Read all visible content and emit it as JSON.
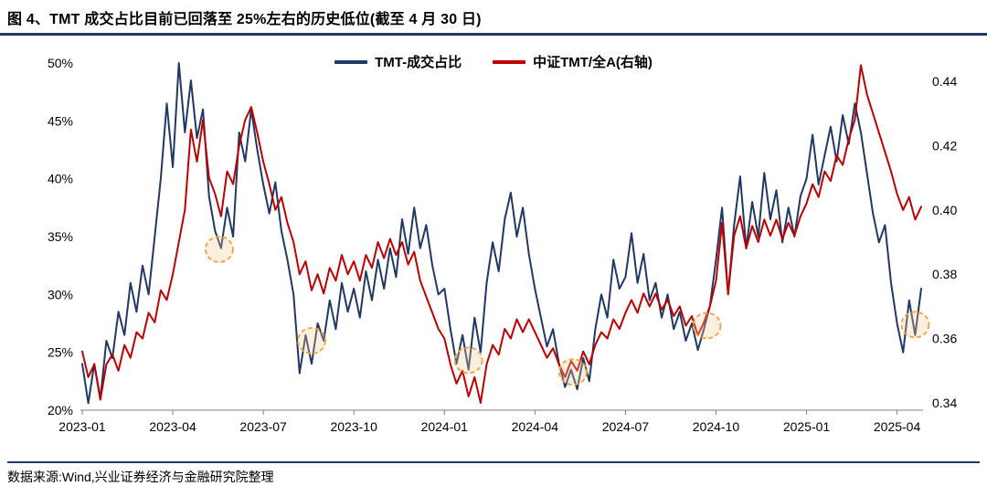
{
  "title": "图 4、TMT 成交占比目前已回落至 25%左右的历史低位(截至 4 月 30 日)",
  "footer": {
    "source": "数据来源:Wind,兴业证券经济与金融研究院整理"
  },
  "colors": {
    "accent_rule": "#1F3864",
    "blue_line": "#1F3864",
    "red_line": "#C00000",
    "axis_text": "#000000",
    "axis_line": "#7f7f7f",
    "highlight_stroke": "#F2A33C",
    "highlight_fill": "rgba(247,202,153,0.30)"
  },
  "legend": [
    {
      "label": "TMT-成交占比",
      "color": "#1F3864"
    },
    {
      "label": "中证TMT/全A(右轴)",
      "color": "#C00000"
    }
  ],
  "chart_data": {
    "type": "line",
    "title": "图 4、TMT 成交占比目前已回落至 25%左右的历史低位(截至 4 月 30 日)",
    "grid": false,
    "legend_position": "top-center",
    "x_axis": {
      "tick_labels": [
        "2023-01",
        "2023-04",
        "2023-07",
        "2023-10",
        "2024-01",
        "2024-04",
        "2024-07",
        "2024-10",
        "2025-01",
        "2025-04"
      ],
      "tick_indices": [
        0,
        15,
        30,
        45,
        60,
        75,
        90,
        105,
        120,
        135
      ],
      "n_points": 140
    },
    "left_axis": {
      "range": [
        20,
        50
      ],
      "tick_values": [
        50,
        45,
        40,
        35,
        30,
        25,
        20
      ],
      "tick_labels": [
        "50%",
        "45%",
        "40%",
        "35%",
        "30%",
        "25%",
        "20%"
      ]
    },
    "right_axis": {
      "range": [
        0.34,
        0.445
      ],
      "tick_values": [
        0.44,
        0.42,
        0.4,
        0.38,
        0.36,
        0.34
      ],
      "tick_labels": [
        "0.44",
        "0.42",
        "0.40",
        "0.38",
        "0.36",
        "0.34"
      ]
    },
    "series": [
      {
        "name": "TMT-成交占比",
        "axis": "left",
        "color": "#1F3864",
        "unit": "%",
        "values": [
          24.0,
          20.6,
          24.0,
          21.0,
          26.0,
          24.5,
          28.5,
          26.5,
          31.0,
          28.5,
          32.5,
          30.0,
          35.0,
          40.0,
          46.5,
          41.0,
          50.0,
          44.0,
          48.5,
          43.5,
          46.0,
          38.5,
          35.5,
          34.0,
          37.5,
          35.0,
          44.0,
          41.5,
          46.0,
          42.5,
          39.5,
          37.0,
          39.7,
          35.5,
          33.0,
          30.0,
          23.2,
          26.5,
          24.0,
          27.5,
          26.0,
          29.5,
          27.0,
          31.0,
          28.5,
          30.5,
          28.0,
          32.0,
          29.5,
          33.0,
          30.5,
          34.0,
          31.5,
          36.5,
          33.5,
          37.5,
          34.0,
          36.0,
          32.5,
          30.0,
          30.5,
          27.0,
          24.0,
          26.5,
          23.5,
          28.0,
          25.0,
          31.0,
          34.5,
          32.0,
          36.5,
          38.8,
          35.0,
          37.5,
          33.5,
          30.5,
          28.0,
          25.5,
          27.0,
          24.0,
          22.0,
          23.5,
          21.8,
          24.5,
          22.5,
          27.0,
          30.0,
          28.0,
          33.0,
          30.5,
          31.5,
          35.3,
          31.0,
          33.5,
          29.5,
          31.0,
          28.0,
          30.0,
          27.0,
          28.5,
          26.0,
          27.5,
          25.2,
          27.0,
          29.0,
          33.0,
          37.5,
          30.0,
          36.0,
          40.2,
          34.0,
          38.0,
          35.0,
          40.5,
          36.5,
          39.0,
          34.5,
          37.5,
          35.0,
          38.5,
          40.0,
          43.8,
          39.5,
          42.0,
          44.5,
          41.5,
          45.5,
          43.0,
          46.5,
          44.0,
          40.5,
          37.0,
          34.5,
          36.0,
          31.0,
          27.5,
          25.0,
          29.5,
          26.5,
          30.5
        ]
      },
      {
        "name": "中证TMT/全A(右轴)",
        "axis": "right",
        "color": "#C00000",
        "unit": "",
        "values": [
          0.356,
          0.348,
          0.352,
          0.341,
          0.352,
          0.355,
          0.35,
          0.358,
          0.354,
          0.362,
          0.36,
          0.368,
          0.365,
          0.375,
          0.372,
          0.38,
          0.39,
          0.4,
          0.425,
          0.415,
          0.428,
          0.41,
          0.405,
          0.398,
          0.412,
          0.408,
          0.42,
          0.428,
          0.432,
          0.424,
          0.415,
          0.408,
          0.4,
          0.404,
          0.396,
          0.39,
          0.38,
          0.384,
          0.375,
          0.38,
          0.374,
          0.382,
          0.378,
          0.386,
          0.38,
          0.384,
          0.378,
          0.386,
          0.382,
          0.39,
          0.385,
          0.391,
          0.386,
          0.39,
          0.383,
          0.387,
          0.378,
          0.373,
          0.368,
          0.363,
          0.36,
          0.352,
          0.346,
          0.35,
          0.342,
          0.348,
          0.34,
          0.352,
          0.358,
          0.355,
          0.363,
          0.36,
          0.366,
          0.362,
          0.366,
          0.362,
          0.358,
          0.354,
          0.357,
          0.352,
          0.348,
          0.353,
          0.35,
          0.356,
          0.352,
          0.358,
          0.362,
          0.36,
          0.366,
          0.363,
          0.368,
          0.372,
          0.368,
          0.374,
          0.37,
          0.374,
          0.369,
          0.372,
          0.367,
          0.37,
          0.364,
          0.367,
          0.361,
          0.365,
          0.37,
          0.378,
          0.396,
          0.374,
          0.392,
          0.398,
          0.388,
          0.395,
          0.39,
          0.397,
          0.392,
          0.397,
          0.391,
          0.396,
          0.392,
          0.398,
          0.402,
          0.408,
          0.404,
          0.412,
          0.409,
          0.417,
          0.414,
          0.422,
          0.428,
          0.445,
          0.436,
          0.43,
          0.424,
          0.418,
          0.412,
          0.405,
          0.4,
          0.404,
          0.397,
          0.401
        ]
      }
    ],
    "highlights": [
      {
        "index": 22.7,
        "left_value": 33.9
      },
      {
        "index": 38.0,
        "left_value": 26.0
      },
      {
        "index": 64.0,
        "left_value": 24.3
      },
      {
        "index": 81.3,
        "left_value": 23.3
      },
      {
        "index": 103.5,
        "left_value": 27.3
      },
      {
        "index": 138.0,
        "left_value": 27.4
      }
    ]
  }
}
